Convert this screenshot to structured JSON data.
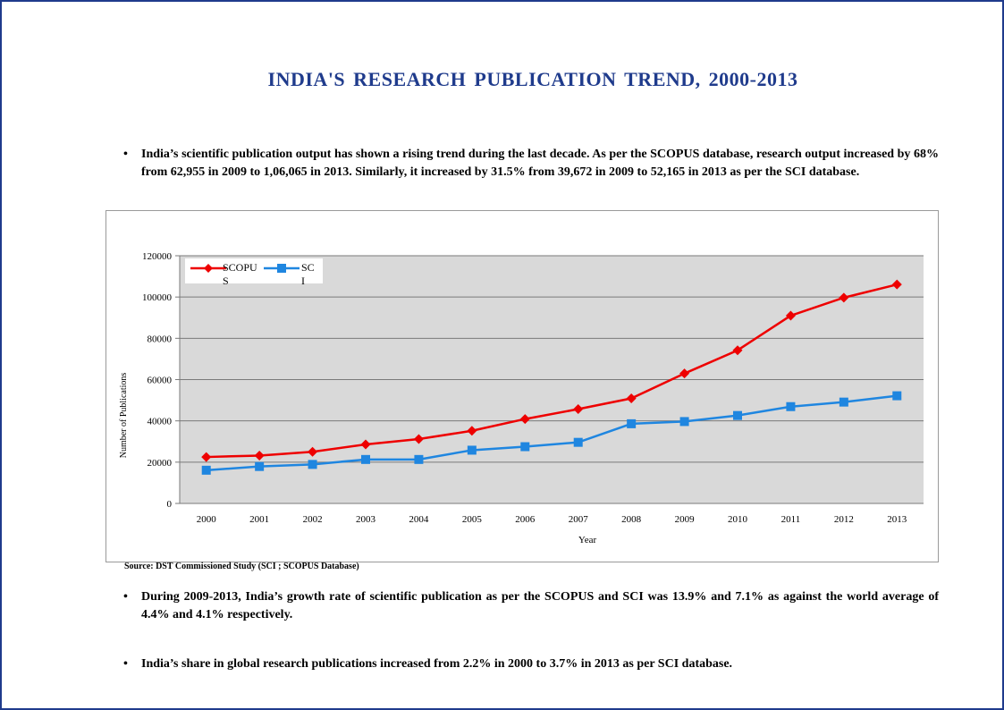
{
  "title": "INDIA'S  RESEARCH  PUBLICATION  TREND, 2000-2013",
  "bullets": {
    "b1": "India’s scientific publication output has shown a rising trend during the last decade. As per the SCOPUS database, research output increased by 68% from 62,955 in 2009 to 1,06,065 in 2013. Similarly, it increased by 31.5% from 39,672 in 2009 to 52,165 in 2013 as per the SCI database.",
    "b2": "During 2009-2013, India’s growth rate of scientific publication as per the SCOPUS and SCI was 13.9% and 7.1% as against the world average of 4.4% and 4.1% respectively.",
    "b3": "India’s share in global research publications increased from 2.2% in 2000 to 3.7% in 2013 as per SCI database.",
    "marker": "•"
  },
  "source": "Source: DST Commissioned Study (SCI ; SCOPUS Database)",
  "colors": {
    "title": "#1f3b8c",
    "scopus": "#ee0000",
    "sci": "#1f86e0",
    "plot_bg": "#d9d9d9"
  },
  "chart_data": {
    "type": "line",
    "xlabel": "Year",
    "ylabel": "Number of Publications",
    "categories": [
      "2000",
      "2001",
      "2002",
      "2003",
      "2004",
      "2005",
      "2006",
      "2007",
      "2008",
      "2009",
      "2010",
      "2011",
      "2012",
      "2013"
    ],
    "ylim": [
      0,
      120000
    ],
    "yticks": [
      0,
      20000,
      40000,
      60000,
      80000,
      100000,
      120000
    ],
    "grid": true,
    "legend_position": "top-left",
    "series": [
      {
        "name": "SCOPUS",
        "marker": "diamond",
        "values": [
          22500,
          23200,
          25000,
          28600,
          31200,
          35200,
          40900,
          45700,
          50900,
          62955,
          74200,
          91000,
          99700,
          106065
        ]
      },
      {
        "name": "SCI",
        "marker": "square",
        "values": [
          16100,
          17900,
          18900,
          21300,
          21300,
          25800,
          27500,
          29600,
          38600,
          39672,
          42600,
          46900,
          49100,
          52165
        ]
      }
    ]
  }
}
